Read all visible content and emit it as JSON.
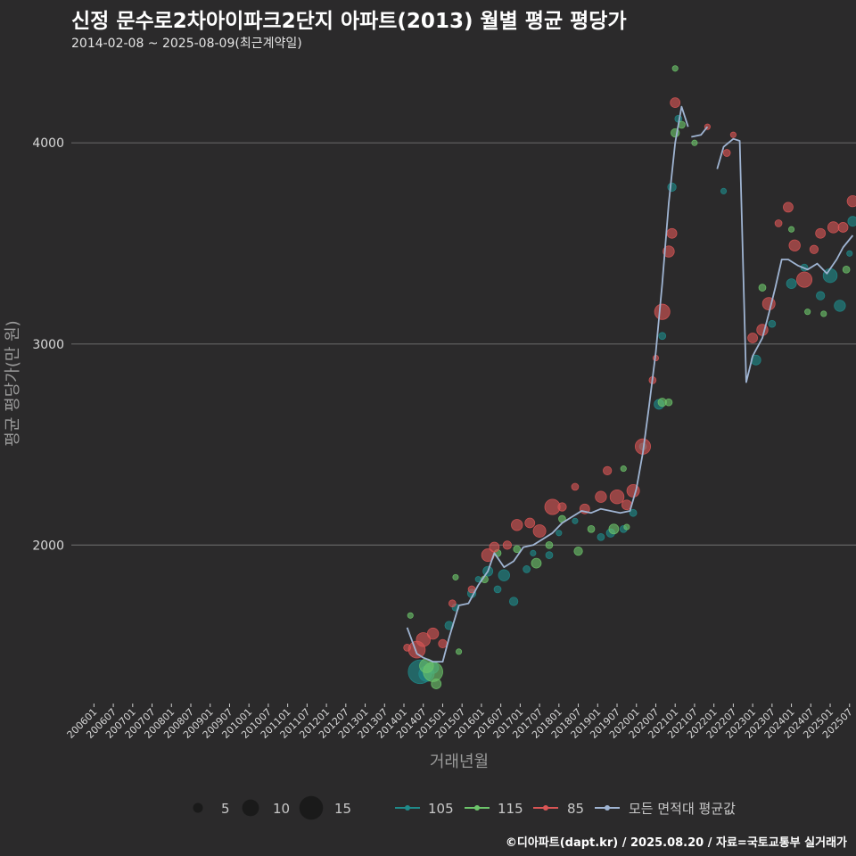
{
  "title": "신정 문수로2차아이파크2단지 아파트(2013) 월별 평균 평당가",
  "subtitle": "2014-02-08 ~ 2025-08-09(최근계약일)",
  "caption": "©디아파트(dapt.kr) / 2025.08.20 / 자료=국토교통부 실거래가",
  "chart_data": {
    "type": "scatter",
    "xlabel": "거래년월",
    "ylabel": "평균 평당가(만 원)",
    "ylim": [
      1230,
      4400
    ],
    "xlim": [
      "2005-06",
      "2025-09"
    ],
    "y_ticks": [
      2000,
      3000,
      4000
    ],
    "grid": true,
    "x_tick_labels": [
      "200601",
      "200607",
      "200701",
      "200707",
      "200801",
      "200807",
      "200901",
      "200907",
      "201001",
      "201007",
      "201101",
      "201107",
      "201201",
      "201207",
      "201301",
      "201307",
      "201401",
      "201407",
      "201501",
      "201507",
      "201601",
      "201607",
      "201701",
      "201707",
      "201801",
      "201807",
      "201901",
      "201907",
      "202001",
      "202007",
      "202101",
      "202107",
      "202201",
      "202207",
      "202301",
      "202307",
      "202401",
      "202407",
      "202501",
      "202507"
    ],
    "size_legend": {
      "labels": [
        "5",
        "10",
        "15"
      ],
      "values": [
        5,
        10,
        15
      ]
    },
    "legend_placement": "bottom",
    "series": [
      {
        "name": "105",
        "color": "#1f8a8a",
        "points": [
          [
            "2014-06",
            1370,
            15
          ],
          [
            "2014-08",
            1360,
            9
          ],
          [
            "2014-10",
            1390,
            6
          ],
          [
            "2015-03",
            1600,
            4
          ],
          [
            "2015-05",
            1690,
            3
          ],
          [
            "2015-10",
            1760,
            4
          ],
          [
            "2015-12",
            1830,
            2
          ],
          [
            "2016-03",
            1870,
            5
          ],
          [
            "2016-06",
            1780,
            3
          ],
          [
            "2016-08",
            1850,
            6
          ],
          [
            "2016-11",
            1720,
            4
          ],
          [
            "2017-03",
            1880,
            3
          ],
          [
            "2017-05",
            1960,
            2
          ],
          [
            "2017-10",
            1950,
            3
          ],
          [
            "2018-01",
            2060,
            2
          ],
          [
            "2018-06",
            2120,
            2
          ],
          [
            "2019-02",
            2040,
            3
          ],
          [
            "2019-05",
            2060,
            4
          ],
          [
            "2019-09",
            2080,
            3
          ],
          [
            "2019-12",
            2160,
            3
          ],
          [
            "2020-03",
            2490,
            3
          ],
          [
            "2020-08",
            2700,
            5
          ],
          [
            "2020-09",
            3040,
            3
          ],
          [
            "2020-12",
            3780,
            4
          ],
          [
            "2021-02",
            4120,
            3
          ],
          [
            "2022-04",
            3760,
            2
          ],
          [
            "2023-02",
            2920,
            5
          ],
          [
            "2023-07",
            3100,
            3
          ],
          [
            "2024-01",
            3300,
            5
          ],
          [
            "2024-05",
            3380,
            3
          ],
          [
            "2024-10",
            3240,
            4
          ],
          [
            "2025-01",
            3340,
            8
          ],
          [
            "2025-04",
            3190,
            6
          ],
          [
            "2025-07",
            3450,
            2
          ],
          [
            "2025-08",
            3610,
            5
          ]
        ]
      },
      {
        "name": "115",
        "color": "#6cc46a",
        "points": [
          [
            "2014-03",
            1650,
            2
          ],
          [
            "2014-08",
            1400,
            8
          ],
          [
            "2014-10",
            1370,
            12
          ],
          [
            "2014-11",
            1310,
            5
          ],
          [
            "2015-05",
            1840,
            2
          ],
          [
            "2015-06",
            1470,
            2
          ],
          [
            "2016-02",
            1830,
            3
          ],
          [
            "2016-06",
            1960,
            3
          ],
          [
            "2016-12",
            1980,
            3
          ],
          [
            "2017-06",
            1910,
            5
          ],
          [
            "2017-10",
            2000,
            3
          ],
          [
            "2018-02",
            2130,
            3
          ],
          [
            "2018-07",
            1970,
            4
          ],
          [
            "2018-11",
            2080,
            3
          ],
          [
            "2019-06",
            2080,
            5
          ],
          [
            "2019-09",
            2380,
            2
          ],
          [
            "2019-10",
            2090,
            2
          ],
          [
            "2020-09",
            2710,
            4
          ],
          [
            "2020-11",
            2710,
            3
          ],
          [
            "2021-01",
            4050,
            4
          ],
          [
            "2021-03",
            4090,
            3
          ],
          [
            "2021-07",
            4000,
            2
          ],
          [
            "2021-01",
            4370,
            2
          ],
          [
            "2023-04",
            3280,
            3
          ],
          [
            "2024-01",
            3570,
            2
          ],
          [
            "2024-06",
            3160,
            2
          ],
          [
            "2024-11",
            3150,
            2
          ],
          [
            "2025-06",
            3370,
            3
          ]
        ]
      },
      {
        "name": "85",
        "color": "#d95555",
        "points": [
          [
            "2014-02",
            1490,
            3
          ],
          [
            "2014-05",
            1480,
            10
          ],
          [
            "2014-07",
            1530,
            8
          ],
          [
            "2014-10",
            1560,
            6
          ],
          [
            "2015-01",
            1510,
            4
          ],
          [
            "2015-04",
            1710,
            3
          ],
          [
            "2015-10",
            1780,
            3
          ],
          [
            "2016-03",
            1950,
            7
          ],
          [
            "2016-05",
            1990,
            5
          ],
          [
            "2016-09",
            2000,
            4
          ],
          [
            "2016-12",
            2100,
            6
          ],
          [
            "2017-04",
            2110,
            5
          ],
          [
            "2017-07",
            2070,
            7
          ],
          [
            "2017-11",
            2190,
            9
          ],
          [
            "2018-02",
            2190,
            4
          ],
          [
            "2018-06",
            2290,
            3
          ],
          [
            "2018-09",
            2180,
            5
          ],
          [
            "2019-02",
            2240,
            6
          ],
          [
            "2019-04",
            2370,
            4
          ],
          [
            "2019-07",
            2240,
            8
          ],
          [
            "2019-10",
            2200,
            5
          ],
          [
            "2019-12",
            2270,
            7
          ],
          [
            "2020-03",
            2490,
            9
          ],
          [
            "2020-06",
            2820,
            3
          ],
          [
            "2020-07",
            2930,
            2
          ],
          [
            "2020-09",
            3160,
            9
          ],
          [
            "2020-11",
            3460,
            6
          ],
          [
            "2020-12",
            3550,
            5
          ],
          [
            "2021-01",
            4200,
            5
          ],
          [
            "2021-11",
            4080,
            2
          ],
          [
            "2022-05",
            3950,
            3
          ],
          [
            "2022-07",
            4040,
            2
          ],
          [
            "2023-01",
            3030,
            5
          ],
          [
            "2023-04",
            3070,
            6
          ],
          [
            "2023-06",
            3200,
            7
          ],
          [
            "2023-09",
            3600,
            3
          ],
          [
            "2023-12",
            3680,
            5
          ],
          [
            "2024-02",
            3490,
            6
          ],
          [
            "2024-05",
            3320,
            9
          ],
          [
            "2024-08",
            3470,
            4
          ],
          [
            "2024-10",
            3550,
            5
          ],
          [
            "2025-02",
            3580,
            6
          ],
          [
            "2025-05",
            3580,
            5
          ],
          [
            "2025-08",
            3710,
            6
          ]
        ]
      }
    ],
    "average_line": {
      "name": "모든 면적대 평균값",
      "color": "#9fb4d2",
      "segments": [
        [
          [
            "2014-02",
            1590
          ],
          [
            "2014-05",
            1460
          ],
          [
            "2014-07",
            1440
          ],
          [
            "2014-10",
            1420
          ],
          [
            "2015-01",
            1420
          ],
          [
            "2015-03",
            1540
          ],
          [
            "2015-06",
            1700
          ],
          [
            "2015-09",
            1710
          ],
          [
            "2015-12",
            1800
          ],
          [
            "2016-03",
            1870
          ],
          [
            "2016-05",
            1960
          ],
          [
            "2016-08",
            1890
          ],
          [
            "2016-11",
            1920
          ],
          [
            "2017-02",
            1990
          ],
          [
            "2017-05",
            2000
          ],
          [
            "2017-08",
            2030
          ],
          [
            "2017-11",
            2060
          ],
          [
            "2018-02",
            2110
          ],
          [
            "2018-05",
            2140
          ],
          [
            "2018-08",
            2170
          ],
          [
            "2018-11",
            2160
          ],
          [
            "2019-02",
            2180
          ],
          [
            "2019-05",
            2170
          ],
          [
            "2019-08",
            2160
          ],
          [
            "2019-11",
            2170
          ],
          [
            "2020-01",
            2280
          ],
          [
            "2020-03",
            2460
          ],
          [
            "2020-05",
            2700
          ],
          [
            "2020-07",
            2960
          ],
          [
            "2020-09",
            3300
          ],
          [
            "2020-11",
            3700
          ],
          [
            "2021-01",
            4000
          ],
          [
            "2021-03",
            4180
          ],
          [
            "2021-05",
            4080
          ]
        ],
        [
          [
            "2021-06",
            4030
          ],
          [
            "2021-09",
            4040
          ],
          [
            "2021-11",
            4080
          ]
        ],
        [
          [
            "2022-02",
            3870
          ],
          [
            "2022-04",
            3980
          ],
          [
            "2022-07",
            4020
          ],
          [
            "2022-09",
            4010
          ],
          [
            "2022-11",
            2810
          ],
          [
            "2023-01",
            2940
          ],
          [
            "2023-04",
            3030
          ],
          [
            "2023-06",
            3150
          ],
          [
            "2023-08",
            3280
          ],
          [
            "2023-10",
            3420
          ],
          [
            "2023-12",
            3420
          ],
          [
            "2024-03",
            3390
          ],
          [
            "2024-06",
            3370
          ],
          [
            "2024-09",
            3400
          ],
          [
            "2024-12",
            3350
          ],
          [
            "2025-03",
            3420
          ],
          [
            "2025-05",
            3480
          ],
          [
            "2025-08",
            3540
          ]
        ]
      ]
    },
    "legend_items": [
      "105",
      "115",
      "85",
      "모든 면적대 평균값"
    ]
  }
}
